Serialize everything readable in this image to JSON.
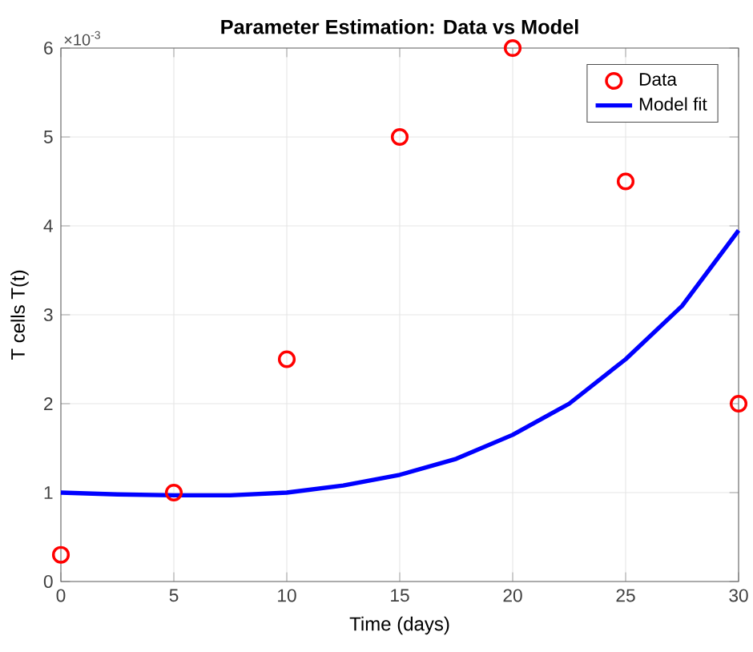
{
  "chart_data": {
    "type": "scatter",
    "title": "Parameter Estimation: Data vs Model",
    "xlabel": "Time (days)",
    "ylabel": "T cells T(t)",
    "xlim": [
      0,
      30
    ],
    "xticks": [
      0,
      5,
      10,
      15,
      20,
      25,
      30
    ],
    "ylim": [
      0,
      6
    ],
    "yticks": [
      0,
      1,
      2,
      3,
      4,
      5,
      6
    ],
    "annotations": [
      "×10$^{-3}$"
    ],
    "grid": true,
    "legend": "top right",
    "series": [
      {
        "name": "Data",
        "color": "#ff0000",
        "marker": "circle",
        "x": [
          0,
          5,
          10,
          15,
          20,
          25,
          30
        ],
        "values": [
          0.3,
          1,
          2.5,
          5,
          6,
          4.5,
          2
        ]
      },
      {
        "name": "Model fit",
        "type": "line",
        "color": "#0000ff",
        "line_style": "solid",
        "x": [
          0,
          2.5,
          5,
          7.5,
          10,
          12.5,
          15,
          17.5,
          20,
          22.5,
          25,
          27.5,
          30
        ],
        "values": [
          1.0,
          0.98,
          0.97,
          0.97,
          1.0,
          1.08,
          1.2,
          1.38,
          1.65,
          2.0,
          2.5,
          3.1,
          3.95
        ]
      }
    ]
  }
}
